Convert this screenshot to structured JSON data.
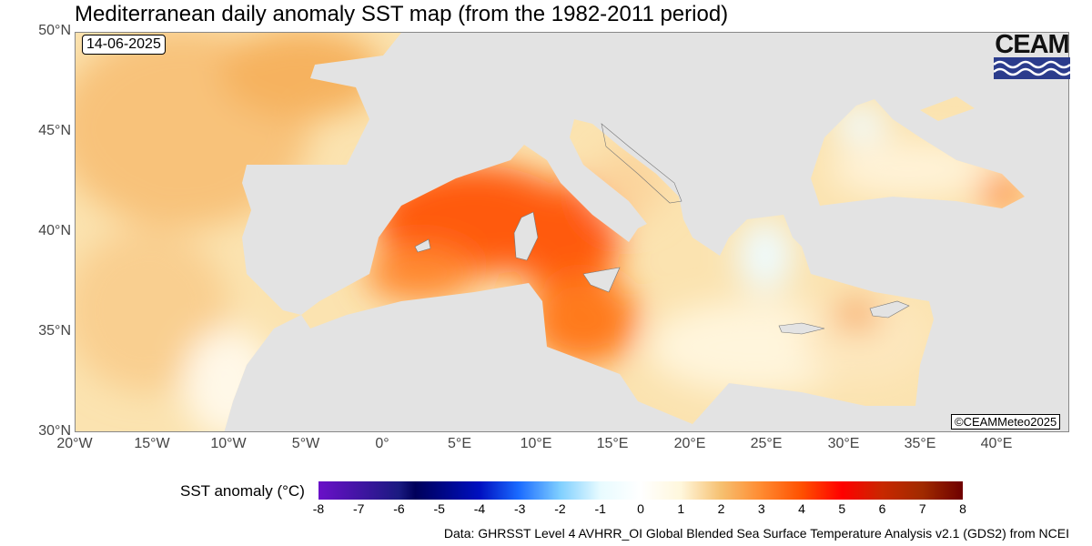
{
  "title": "Mediterranean daily anomaly SST map (from the 1982-2011 period)",
  "date": "14-06-2025",
  "copyright": "©CEAMMeteo2025",
  "logo": {
    "text": "CEAM"
  },
  "axes": {
    "lat_labels": [
      "50°N",
      "45°N",
      "40°N",
      "35°N",
      "30°N"
    ],
    "lon_labels": [
      "20°W",
      "15°W",
      "10°W",
      "5°W",
      "0°",
      "5°E",
      "10°E",
      "15°E",
      "20°E",
      "25°E",
      "30°E",
      "35°E",
      "40°E"
    ]
  },
  "colorbar": {
    "label": "SST anomaly (°C)",
    "ticks": [
      "-8",
      "-7",
      "-6",
      "-5",
      "-4",
      "-3",
      "-2",
      "-1",
      "0",
      "1",
      "2",
      "3",
      "4",
      "5",
      "6",
      "7",
      "8"
    ],
    "range": [
      -8,
      8
    ]
  },
  "source": "Data: GHRSST Level 4 AVHRR_OI Global Blended Sea Surface Temperature Analysis v2.1 (GDS2) from NCEI",
  "colors": {
    "land": "#e3e3e3",
    "warm": "#ff6a10",
    "hot": "#ff4a00",
    "mild": "#f8c37a",
    "pale": "#fff6dc"
  }
}
